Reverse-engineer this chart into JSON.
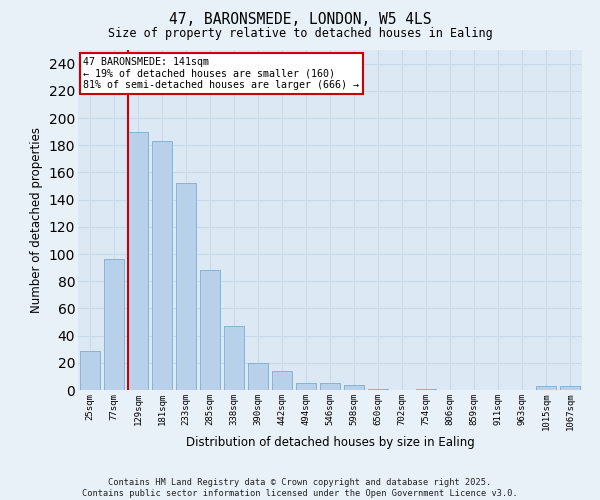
{
  "title1": "47, BARONSMEDE, LONDON, W5 4LS",
  "title2": "Size of property relative to detached houses in Ealing",
  "xlabel": "Distribution of detached houses by size in Ealing",
  "ylabel": "Number of detached properties",
  "categories": [
    "25sqm",
    "77sqm",
    "129sqm",
    "181sqm",
    "233sqm",
    "285sqm",
    "338sqm",
    "390sqm",
    "442sqm",
    "494sqm",
    "546sqm",
    "598sqm",
    "650sqm",
    "702sqm",
    "754sqm",
    "806sqm",
    "859sqm",
    "911sqm",
    "963sqm",
    "1015sqm",
    "1067sqm"
  ],
  "values": [
    29,
    96,
    190,
    183,
    152,
    88,
    47,
    20,
    14,
    5,
    5,
    4,
    1,
    0,
    1,
    0,
    0,
    0,
    0,
    3,
    3
  ],
  "bar_color": "#b8d0ea",
  "bar_edge_color": "#7aaed4",
  "redline_index": 2,
  "redline_color": "#cc0000",
  "annotation_text": "47 BARONSMEDE: 141sqm\n← 19% of detached houses are smaller (160)\n81% of semi-detached houses are larger (666) →",
  "annotation_box_facecolor": "#ffffff",
  "annotation_box_edgecolor": "#cc0000",
  "ylim": [
    0,
    250
  ],
  "yticks": [
    0,
    20,
    40,
    60,
    80,
    100,
    120,
    140,
    160,
    180,
    200,
    220,
    240
  ],
  "grid_color": "#c8d8e8",
  "plot_bg_color": "#dce9f5",
  "fig_bg_color": "#e8f0f8",
  "footer_line1": "Contains HM Land Registry data © Crown copyright and database right 2025.",
  "footer_line2": "Contains public sector information licensed under the Open Government Licence v3.0."
}
